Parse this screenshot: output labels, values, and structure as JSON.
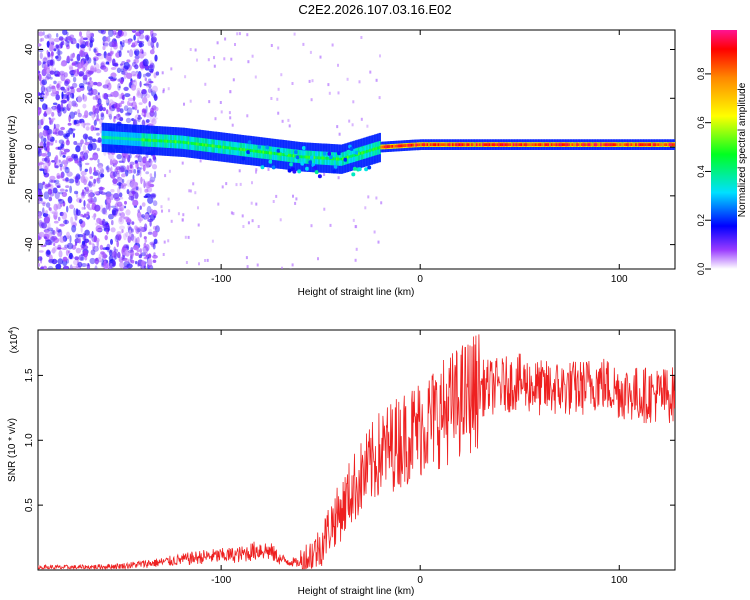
{
  "title": "C2E2.2026.107.03.16.E02",
  "chart_data": [
    {
      "type": "heatmap",
      "xlabel": "Height of straight line (km)",
      "ylabel": "Frequency (Hz)",
      "xlim": [
        -192,
        128
      ],
      "ylim": [
        -50,
        48
      ],
      "x_ticks": [
        "-100",
        "0",
        "100"
      ],
      "y_ticks": [
        "-40",
        "-20",
        "0",
        "20",
        "40"
      ],
      "colorbar": {
        "label": "Normalized spectral amplitude",
        "range": [
          0,
          0.98
        ],
        "ticks": [
          "0.0",
          "0.2",
          "0.4",
          "0.6",
          "0.8"
        ]
      },
      "ridge": [
        {
          "x": -160,
          "y": 4
        },
        {
          "x": -140,
          "y": 3
        },
        {
          "x": -120,
          "y": 2
        },
        {
          "x": -100,
          "y": 0
        },
        {
          "x": -80,
          "y": -2
        },
        {
          "x": -60,
          "y": -4
        },
        {
          "x": -40,
          "y": -5
        },
        {
          "x": -20,
          "y": 0
        },
        {
          "x": 0,
          "y": 1
        },
        {
          "x": 50,
          "y": 1
        },
        {
          "x": 100,
          "y": 1
        },
        {
          "x": 128,
          "y": 1
        }
      ]
    },
    {
      "type": "line",
      "xlabel": "Height of straight line (km)",
      "ylabel": "SNR (10 * v/v)",
      "scale_label": "(x10",
      "scale_exp": "4",
      "scale_close": ")",
      "xlim": [
        -192,
        128
      ],
      "ylim": [
        0,
        1.85
      ],
      "x_ticks": [
        "-100",
        "0",
        "100"
      ],
      "y_ticks": [
        "0.5",
        "1.0",
        "1.5"
      ],
      "series": [
        {
          "color": "#ee2020",
          "x": [
            -192,
            -170,
            -150,
            -130,
            -110,
            -90,
            -80,
            -75,
            -70,
            -60,
            -50,
            -45,
            -40,
            -35,
            -30,
            -20,
            -10,
            0,
            10,
            20,
            30,
            40,
            50,
            60,
            70,
            80,
            90,
            100,
            110,
            120,
            128
          ],
          "y": [
            0.02,
            0.02,
            0.03,
            0.06,
            0.1,
            0.12,
            0.16,
            0.14,
            0.08,
            0.05,
            0.18,
            0.35,
            0.45,
            0.6,
            0.7,
            0.9,
            1.0,
            1.1,
            1.2,
            1.3,
            1.4,
            1.42,
            1.45,
            1.4,
            1.4,
            1.4,
            1.45,
            1.38,
            1.35,
            1.35,
            1.35
          ]
        }
      ]
    }
  ]
}
